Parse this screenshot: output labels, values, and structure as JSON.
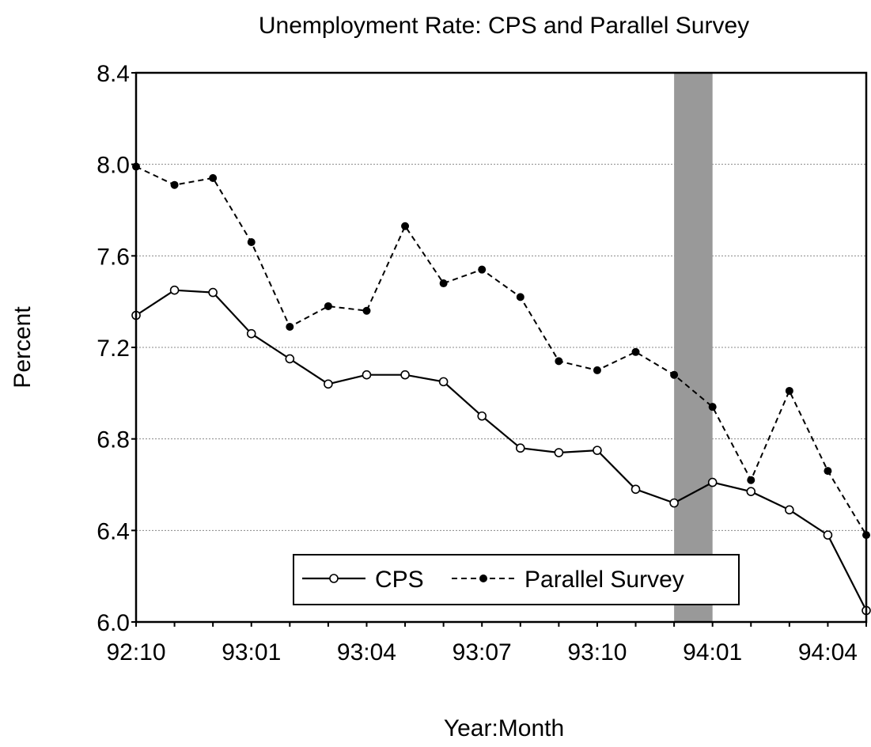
{
  "chart_data": {
    "type": "line",
    "title": "Unemployment Rate: CPS and Parallel Survey",
    "xlabel": "Year:Month",
    "ylabel": "Percent",
    "ylim": [
      6.0,
      8.4
    ],
    "yticks": [
      "6.0",
      "6.4",
      "6.8",
      "7.2",
      "7.6",
      "8.0",
      "8.4"
    ],
    "x": [
      "92:10",
      "92:11",
      "92:12",
      "93:01",
      "93:02",
      "93:03",
      "93:04",
      "93:05",
      "93:06",
      "93:07",
      "93:08",
      "93:09",
      "93:10",
      "93:11",
      "93:12",
      "94:01",
      "94:02",
      "94:03",
      "94:04",
      "94:05"
    ],
    "xtick_labels": [
      "92:10",
      "93:01",
      "93:04",
      "93:07",
      "93:10",
      "94:01",
      "94:04"
    ],
    "shaded_region": [
      "93:12",
      "94:01"
    ],
    "grid": "horizontal dotted",
    "legend_placement": "bottom-center",
    "series": [
      {
        "name": "CPS",
        "style": "solid line, open circle markers",
        "values": [
          7.34,
          7.45,
          7.44,
          7.26,
          7.15,
          7.04,
          7.08,
          7.08,
          7.05,
          6.9,
          6.76,
          6.74,
          6.75,
          6.58,
          6.52,
          6.61,
          6.57,
          6.49,
          6.38,
          6.05
        ]
      },
      {
        "name": "Parallel Survey",
        "style": "dashed line, filled circle markers",
        "values": [
          7.99,
          7.91,
          7.94,
          7.66,
          7.29,
          7.38,
          7.36,
          7.73,
          7.48,
          7.54,
          7.42,
          7.14,
          7.1,
          7.18,
          7.08,
          6.94,
          6.62,
          7.01,
          6.66,
          6.38
        ]
      }
    ]
  }
}
